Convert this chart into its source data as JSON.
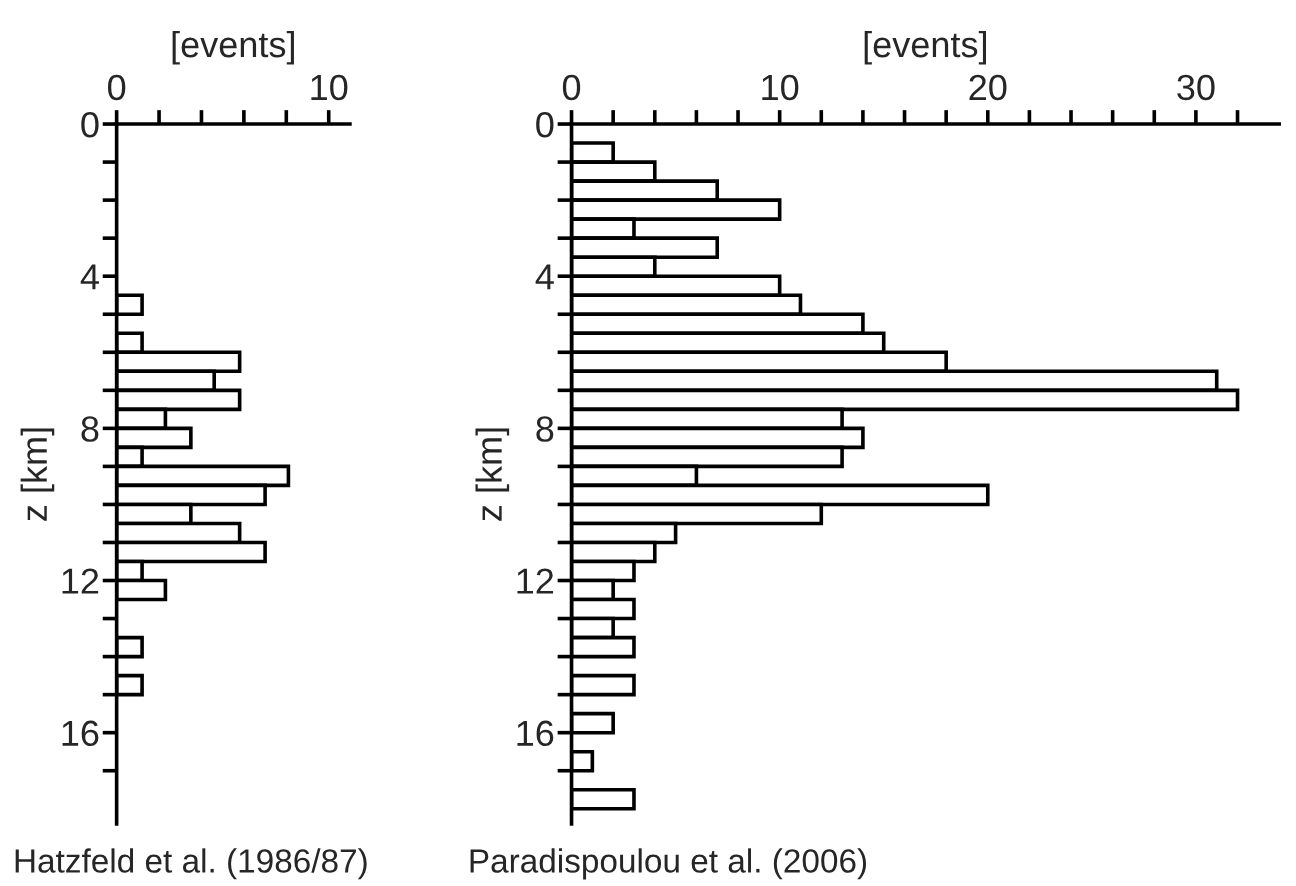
{
  "chart_data": [
    {
      "type": "histogram",
      "orientation": "horizontal",
      "xlabel": "[events]",
      "ylabel": "z [km]",
      "annotations": [
        "Hatzfeld et al. (1986/87)"
      ],
      "bins": [
        0,
        0.5,
        1,
        1.5,
        2,
        2.5,
        3,
        3.5,
        4,
        4.5,
        5,
        5.5,
        6,
        6.5,
        7,
        7.5,
        8,
        8.5,
        9,
        9.5,
        10,
        10.5,
        11,
        11.5,
        12,
        12.5,
        13,
        13.5,
        14,
        14.5,
        15,
        15.5,
        16,
        16.5,
        17,
        17.5,
        18
      ],
      "values": [
        0,
        0,
        0,
        0,
        0,
        0,
        0,
        0,
        0,
        1.2,
        0,
        1.2,
        5.8,
        4.6,
        5.8,
        2.3,
        3.5,
        1.2,
        8.1,
        7.0,
        3.5,
        5.8,
        7.0,
        1.2,
        2.3,
        0,
        0,
        1.2,
        0,
        1.2,
        0,
        0,
        0,
        0,
        0,
        0
      ],
      "color": "#ffffff",
      "xlim": [
        0,
        11
      ],
      "xticks": [
        0,
        {
          "value": 2,
          "label": null
        },
        {
          "value": 4,
          "label": null
        },
        {
          "value": 6,
          "label": null
        },
        {
          "value": 8,
          "label": null
        },
        10
      ],
      "ylim": [
        18.4,
        0
      ],
      "yticks": [
        0,
        {
          "value": 1,
          "label": null
        },
        {
          "value": 2,
          "label": null
        },
        {
          "value": 3,
          "label": null
        },
        4,
        {
          "value": 5,
          "label": null
        },
        {
          "value": 6,
          "label": null
        },
        {
          "value": 7,
          "label": null
        },
        8,
        {
          "value": 9,
          "label": null
        },
        {
          "value": 10,
          "label": null
        },
        {
          "value": 11,
          "label": null
        },
        12,
        {
          "value": 13,
          "label": null
        },
        {
          "value": 14,
          "label": null
        },
        {
          "value": 15,
          "label": null
        },
        16,
        {
          "value": 17,
          "label": null
        }
      ]
    },
    {
      "type": "histogram",
      "orientation": "horizontal",
      "xlabel": "[events]",
      "ylabel": "z [km]",
      "annotations": [
        "Paradispoulou et al. (2006)"
      ],
      "bins": [
        0,
        0.5,
        1,
        1.5,
        2,
        2.5,
        3,
        3.5,
        4,
        4.5,
        5,
        5.5,
        6,
        6.5,
        7,
        7.5,
        8,
        8.5,
        9,
        9.5,
        10,
        10.5,
        11,
        11.5,
        12,
        12.5,
        13,
        13.5,
        14,
        14.5,
        15,
        15.5,
        16,
        16.5,
        17,
        17.5,
        18
      ],
      "values": [
        0,
        2,
        4,
        7,
        10,
        3,
        7,
        4,
        10,
        11,
        14,
        15,
        18,
        31,
        32,
        13,
        14,
        13,
        6,
        20,
        12,
        5,
        4,
        3,
        2,
        3,
        2,
        3,
        0,
        3,
        0,
        2,
        0,
        1,
        0,
        3
      ],
      "color": "#ffffff",
      "xlim": [
        0,
        34
      ],
      "xticks": [
        0,
        {
          "value": 2,
          "label": null
        },
        {
          "value": 4,
          "label": null
        },
        {
          "value": 6,
          "label": null
        },
        {
          "value": 8,
          "label": null
        },
        10,
        {
          "value": 12,
          "label": null
        },
        {
          "value": 14,
          "label": null
        },
        {
          "value": 16,
          "label": null
        },
        {
          "value": 18,
          "label": null
        },
        20,
        {
          "value": 22,
          "label": null
        },
        {
          "value": 24,
          "label": null
        },
        {
          "value": 26,
          "label": null
        },
        {
          "value": 28,
          "label": null
        },
        30,
        {
          "value": 32,
          "label": null
        }
      ],
      "ylim": [
        18.4,
        0
      ],
      "yticks": [
        0,
        {
          "value": 1,
          "label": null
        },
        {
          "value": 2,
          "label": null
        },
        {
          "value": 3,
          "label": null
        },
        4,
        {
          "value": 5,
          "label": null
        },
        {
          "value": 6,
          "label": null
        },
        {
          "value": 7,
          "label": null
        },
        8,
        {
          "value": 9,
          "label": null
        },
        {
          "value": 10,
          "label": null
        },
        {
          "value": 11,
          "label": null
        },
        12,
        {
          "value": 13,
          "label": null
        },
        {
          "value": 14,
          "label": null
        },
        {
          "value": 15,
          "label": null
        },
        16,
        {
          "value": 17,
          "label": null
        }
      ]
    }
  ]
}
